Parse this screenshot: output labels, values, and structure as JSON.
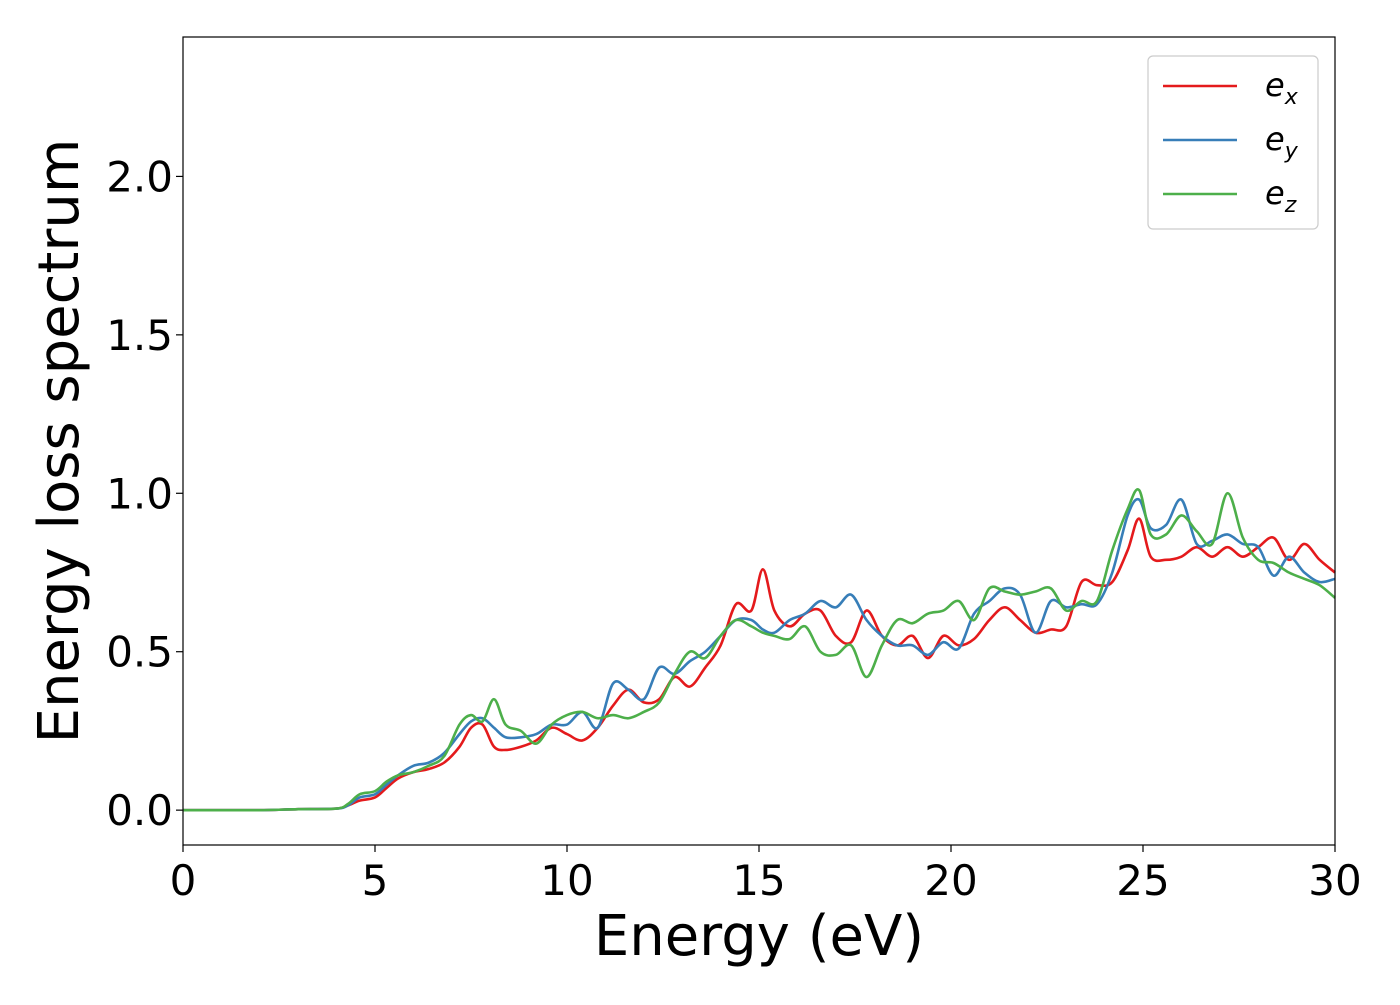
{
  "chart_data": {
    "type": "line",
    "title": "",
    "xlabel": "Energy (eV)",
    "ylabel": "Energy loss spectrum",
    "xlim": [
      0,
      30
    ],
    "ylim": [
      -0.11,
      2.44
    ],
    "xticks": [
      0,
      5,
      10,
      15,
      20,
      25,
      30
    ],
    "xtick_labels": [
      "0",
      "5",
      "10",
      "15",
      "20",
      "25",
      "30"
    ],
    "yticks": [
      0.0,
      0.5,
      1.0,
      1.5,
      2.0
    ],
    "ytick_labels": [
      "0.0",
      "0.5",
      "1.0",
      "1.5",
      "2.0"
    ],
    "grid": false,
    "legend_position": "top-right",
    "x": [
      0,
      1,
      2,
      3,
      4,
      4.3,
      4.6,
      5,
      5.3,
      5.6,
      6,
      6.4,
      6.8,
      7.2,
      7.5,
      7.8,
      8.1,
      8.4,
      8.8,
      9.2,
      9.6,
      10,
      10.4,
      10.8,
      11.2,
      11.6,
      12,
      12.4,
      12.8,
      13.2,
      13.6,
      14,
      14.4,
      14.8,
      15.1,
      15.4,
      15.8,
      16.2,
      16.6,
      17,
      17.4,
      17.8,
      18.2,
      18.6,
      19,
      19.4,
      19.8,
      20.2,
      20.6,
      21,
      21.4,
      21.8,
      22.2,
      22.6,
      23,
      23.4,
      23.8,
      24.2,
      24.6,
      24.9,
      25.2,
      25.6,
      26,
      26.4,
      26.8,
      27.2,
      27.6,
      28,
      28.4,
      28.8,
      29.2,
      29.6,
      30
    ],
    "series": [
      {
        "name": "e_x",
        "label_base": "e",
        "label_sub": "x",
        "color": "#e41a1c",
        "values": [
          0.0,
          0.0,
          0.0,
          0.003,
          0.005,
          0.015,
          0.03,
          0.04,
          0.07,
          0.1,
          0.12,
          0.13,
          0.15,
          0.2,
          0.26,
          0.27,
          0.2,
          0.19,
          0.2,
          0.22,
          0.26,
          0.24,
          0.22,
          0.26,
          0.33,
          0.38,
          0.34,
          0.35,
          0.42,
          0.39,
          0.45,
          0.52,
          0.65,
          0.63,
          0.76,
          0.63,
          0.58,
          0.62,
          0.63,
          0.55,
          0.53,
          0.63,
          0.55,
          0.52,
          0.55,
          0.48,
          0.55,
          0.52,
          0.54,
          0.6,
          0.64,
          0.6,
          0.56,
          0.57,
          0.58,
          0.72,
          0.71,
          0.72,
          0.82,
          0.92,
          0.8,
          0.79,
          0.8,
          0.83,
          0.8,
          0.83,
          0.8,
          0.83,
          0.86,
          0.79,
          0.84,
          0.79,
          0.75
        ]
      },
      {
        "name": "e_y",
        "label_base": "e",
        "label_sub": "y",
        "color": "#377eb8",
        "values": [
          0.0,
          0.0,
          0.0,
          0.003,
          0.005,
          0.015,
          0.04,
          0.05,
          0.08,
          0.11,
          0.14,
          0.15,
          0.18,
          0.24,
          0.28,
          0.29,
          0.26,
          0.23,
          0.23,
          0.24,
          0.27,
          0.27,
          0.31,
          0.26,
          0.4,
          0.38,
          0.35,
          0.45,
          0.43,
          0.47,
          0.5,
          0.55,
          0.6,
          0.6,
          0.57,
          0.56,
          0.6,
          0.62,
          0.66,
          0.64,
          0.68,
          0.6,
          0.55,
          0.52,
          0.52,
          0.49,
          0.53,
          0.51,
          0.62,
          0.66,
          0.7,
          0.68,
          0.56,
          0.66,
          0.64,
          0.65,
          0.65,
          0.75,
          0.93,
          0.98,
          0.89,
          0.9,
          0.98,
          0.84,
          0.85,
          0.87,
          0.84,
          0.83,
          0.74,
          0.8,
          0.75,
          0.72,
          0.73
        ]
      },
      {
        "name": "e_z",
        "label_base": "e",
        "label_sub": "z",
        "color": "#4daf4a",
        "values": [
          0.0,
          0.0,
          0.0,
          0.003,
          0.005,
          0.02,
          0.05,
          0.06,
          0.09,
          0.11,
          0.12,
          0.14,
          0.17,
          0.27,
          0.3,
          0.28,
          0.35,
          0.27,
          0.25,
          0.21,
          0.27,
          0.3,
          0.31,
          0.29,
          0.3,
          0.29,
          0.31,
          0.34,
          0.43,
          0.5,
          0.48,
          0.55,
          0.6,
          0.58,
          0.56,
          0.55,
          0.54,
          0.58,
          0.5,
          0.49,
          0.52,
          0.42,
          0.52,
          0.6,
          0.59,
          0.62,
          0.63,
          0.66,
          0.6,
          0.7,
          0.69,
          0.68,
          0.69,
          0.7,
          0.63,
          0.66,
          0.66,
          0.82,
          0.95,
          1.01,
          0.87,
          0.87,
          0.93,
          0.88,
          0.84,
          1.0,
          0.86,
          0.79,
          0.78,
          0.75,
          0.73,
          0.71,
          0.67
        ]
      }
    ]
  }
}
